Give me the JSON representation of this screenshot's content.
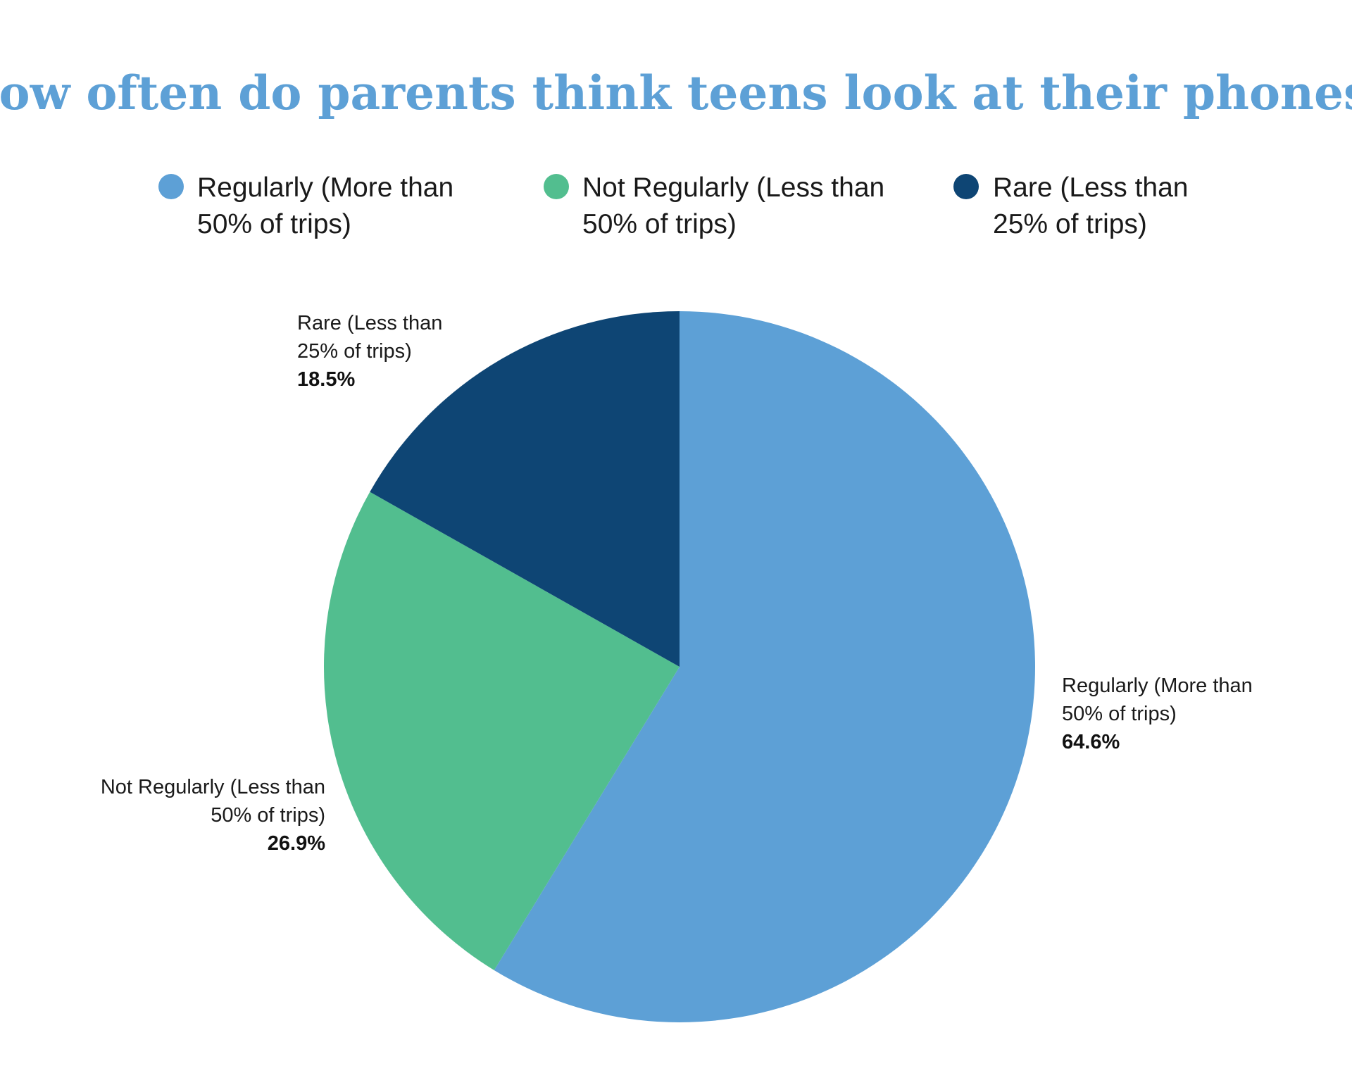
{
  "chart_data": {
    "type": "pie",
    "title": "How often do parents think teens look at their phones?",
    "slices": [
      {
        "label_lines": [
          "Regularly (More than",
          "50% of trips)"
        ],
        "value": 64.6,
        "value_label": "64.6%",
        "color": "#5da0d6"
      },
      {
        "label_lines": [
          "Not Regularly (Less than",
          "50% of trips)"
        ],
        "value": 26.9,
        "value_label": "26.9%",
        "color": "#52be8f"
      },
      {
        "label_lines": [
          "Rare (Less than",
          "25% of trips)"
        ],
        "value": 18.5,
        "value_label": "18.5%",
        "color": "#0e4574"
      }
    ],
    "legend_placement": "top",
    "title_color": "#5da0d6"
  }
}
